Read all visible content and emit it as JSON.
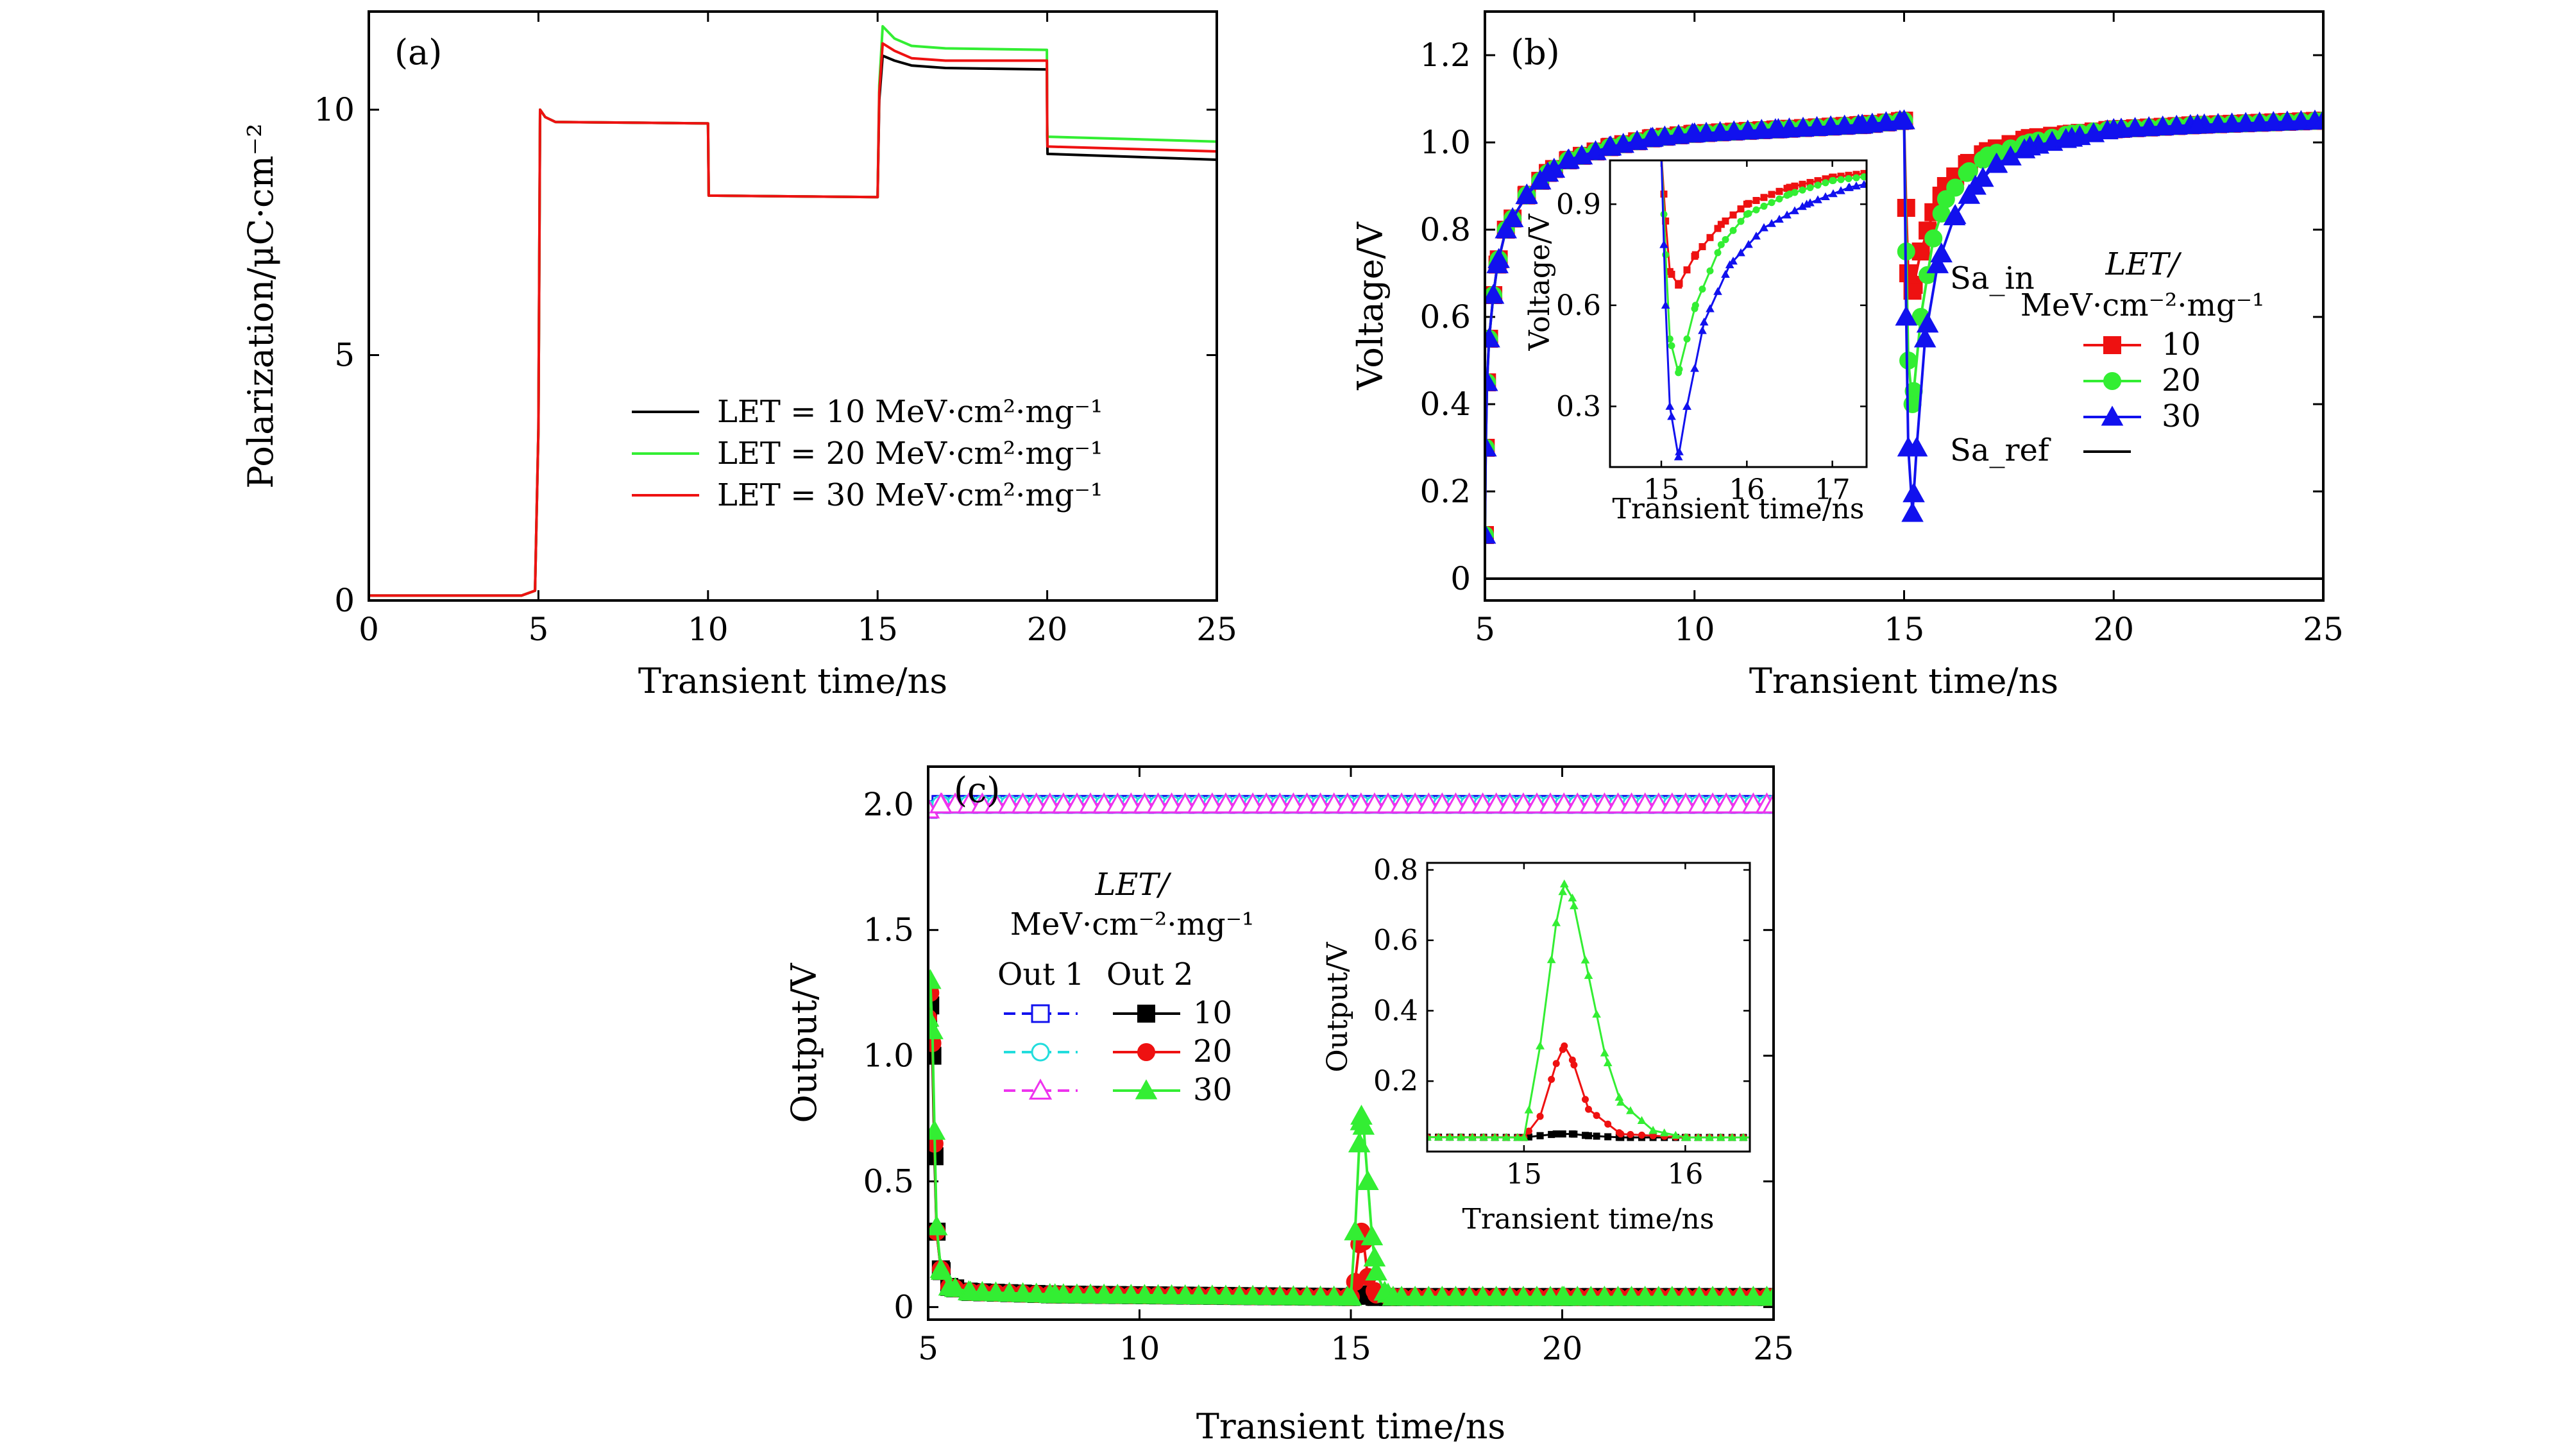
{
  "figure": {
    "colors": {
      "black": "#000000",
      "green": "#33ee33",
      "red": "#ee1111",
      "blue": "#1111ee",
      "cyan": "#22dddd",
      "magenta": "#ee33ee"
    }
  },
  "chart_data": [
    {
      "id": "a",
      "type": "line",
      "panel_label": "(a)",
      "xlabel": "Transient time/ns",
      "ylabel": "Polarization/μC·cm⁻²",
      "xlim": [
        0,
        25
      ],
      "ylim": [
        0,
        12
      ],
      "xticks": [
        "0",
        "5",
        "10",
        "15",
        "20",
        "25"
      ],
      "yticks": [
        "0",
        "5",
        "10"
      ],
      "legend_position": "lower-right",
      "series": [
        {
          "name": "LET = 10 MeV·cm²·mg⁻¹",
          "color": "#000000",
          "x": [
            0,
            4.5,
            4.9,
            5.0,
            5.05,
            5.2,
            5.5,
            10.0,
            10.02,
            15.0,
            15.05,
            15.15,
            15.5,
            16.0,
            17.0,
            19.99,
            20.0,
            20.01,
            25
          ],
          "y": [
            0.1,
            0.1,
            0.2,
            3.5,
            10.0,
            9.85,
            9.75,
            9.72,
            8.25,
            8.22,
            10.2,
            11.1,
            11.0,
            10.9,
            10.85,
            10.82,
            9.5,
            9.1,
            8.98
          ]
        },
        {
          "name": "LET = 20 MeV·cm²·mg⁻¹",
          "color": "#33ee33",
          "x": [
            0,
            4.5,
            4.9,
            5.0,
            5.05,
            5.2,
            5.5,
            10.0,
            10.02,
            15.0,
            15.05,
            15.15,
            15.5,
            16.0,
            17.0,
            19.99,
            20.0,
            20.01,
            25
          ],
          "y": [
            0.1,
            0.1,
            0.2,
            3.5,
            10.0,
            9.85,
            9.75,
            9.72,
            8.25,
            8.22,
            10.5,
            11.7,
            11.45,
            11.3,
            11.25,
            11.22,
            9.7,
            9.45,
            9.35
          ]
        },
        {
          "name": "LET = 30 MeV·cm²·mg⁻¹",
          "color": "#ee1111",
          "x": [
            0,
            4.5,
            4.9,
            5.0,
            5.05,
            5.2,
            5.5,
            10.0,
            10.02,
            15.0,
            15.05,
            15.15,
            15.5,
            16.0,
            17.0,
            19.99,
            20.0,
            20.01,
            25
          ],
          "y": [
            0.1,
            0.1,
            0.2,
            3.5,
            10.0,
            9.85,
            9.75,
            9.72,
            8.25,
            8.22,
            10.35,
            11.35,
            11.2,
            11.05,
            11.0,
            11.0,
            9.6,
            9.25,
            9.15
          ]
        }
      ]
    },
    {
      "id": "b",
      "type": "line",
      "panel_label": "(b)",
      "xlabel": "Transient time/ns",
      "ylabel": "Voltage/V",
      "xlim": [
        5,
        25
      ],
      "ylim": [
        -0.05,
        1.3
      ],
      "xticks": [
        "5",
        "10",
        "15",
        "20",
        "25"
      ],
      "yticks": [
        "0",
        "0.2",
        "0.4",
        "0.6",
        "0.8",
        "1.0",
        "1.2"
      ],
      "legend": {
        "title": "LET/",
        "subtitle": "MeV·cm⁻²·mg⁻¹",
        "group_in": "Sa_in",
        "group_ref": "Sa_ref",
        "position": "right"
      },
      "series": [
        {
          "name": "10",
          "color": "#ee1111",
          "marker": "square",
          "x": [
            5.0,
            5.02,
            5.05,
            5.1,
            5.2,
            5.3,
            5.5,
            6.0,
            6.5,
            7.0,
            8.0,
            9.0,
            10.0,
            12.0,
            14.0,
            15.0,
            15.05,
            15.1,
            15.2,
            15.4,
            15.7,
            16.0,
            16.5,
            17.0,
            18.0,
            19.0,
            20.0,
            22.0,
            25.0
          ],
          "y": [
            0.1,
            0.3,
            0.45,
            0.55,
            0.65,
            0.72,
            0.8,
            0.88,
            0.93,
            0.96,
            0.99,
            1.01,
            1.02,
            1.03,
            1.04,
            1.05,
            0.85,
            0.7,
            0.66,
            0.75,
            0.84,
            0.9,
            0.95,
            0.98,
            1.01,
            1.02,
            1.03,
            1.04,
            1.05
          ]
        },
        {
          "name": "20",
          "color": "#33ee33",
          "marker": "circle",
          "x": [
            5.0,
            5.02,
            5.05,
            5.1,
            5.2,
            5.3,
            5.5,
            6.0,
            6.5,
            7.0,
            8.0,
            9.0,
            10.0,
            12.0,
            14.0,
            15.0,
            15.05,
            15.1,
            15.2,
            15.4,
            15.7,
            16.0,
            16.5,
            17.0,
            18.0,
            19.0,
            20.0,
            22.0,
            25.0
          ],
          "y": [
            0.1,
            0.3,
            0.45,
            0.55,
            0.65,
            0.72,
            0.8,
            0.88,
            0.93,
            0.96,
            0.99,
            1.01,
            1.02,
            1.03,
            1.04,
            1.05,
            0.75,
            0.5,
            0.4,
            0.6,
            0.78,
            0.87,
            0.93,
            0.97,
            1.0,
            1.02,
            1.03,
            1.04,
            1.05
          ]
        },
        {
          "name": "30",
          "color": "#1111ee",
          "marker": "triangle",
          "x": [
            5.0,
            5.02,
            5.05,
            5.1,
            5.2,
            5.3,
            5.5,
            6.0,
            6.5,
            7.0,
            8.0,
            9.0,
            10.0,
            12.0,
            14.0,
            15.0,
            15.05,
            15.1,
            15.2,
            15.3,
            15.5,
            15.8,
            16.2,
            16.7,
            17.2,
            18.0,
            19.0,
            20.0,
            22.0,
            25.0
          ],
          "y": [
            0.1,
            0.3,
            0.45,
            0.55,
            0.65,
            0.72,
            0.8,
            0.88,
            0.93,
            0.96,
            0.99,
            1.01,
            1.02,
            1.03,
            1.04,
            1.05,
            0.6,
            0.3,
            0.15,
            0.3,
            0.55,
            0.72,
            0.83,
            0.9,
            0.95,
            0.99,
            1.01,
            1.03,
            1.04,
            1.05
          ]
        },
        {
          "name": "Sa_ref",
          "color": "#000000",
          "marker": "none",
          "x": [
            5,
            25
          ],
          "y": [
            0,
            0
          ]
        }
      ],
      "inset": {
        "xlabel": "Transient time/ns",
        "ylabel": "Voltage/V",
        "xlim": [
          14.4,
          17.4
        ],
        "ylim": [
          0.12,
          1.03
        ],
        "xticks": [
          "15",
          "16",
          "17"
        ],
        "yticks": [
          "0.3",
          "0.6",
          "0.9"
        ]
      }
    },
    {
      "id": "c",
      "type": "line",
      "panel_label": "(c)",
      "xlabel": "Transient time/ns",
      "ylabel": "Output/V",
      "xlim": [
        5,
        25
      ],
      "ylim": [
        -0.05,
        2.15
      ],
      "xticks": [
        "5",
        "10",
        "15",
        "20",
        "25"
      ],
      "yticks": [
        "0",
        "0.5",
        "1.0",
        "1.5",
        "2.0"
      ],
      "legend": {
        "title": "LET/",
        "subtitle": "MeV·cm⁻²·mg⁻¹",
        "col1": "Out 1",
        "col2": "Out 2",
        "rows": [
          "10",
          "20",
          "30"
        ],
        "position": "left"
      },
      "series": [
        {
          "name": "Out 1 10",
          "color": "#1111ee",
          "marker": "open-square",
          "x": [
            5.0,
            5.3,
            25.0
          ],
          "y": [
            1.98,
            2.0,
            2.0
          ]
        },
        {
          "name": "Out 1 20",
          "color": "#22dddd",
          "marker": "open-circle",
          "x": [
            5.0,
            5.3,
            25.0
          ],
          "y": [
            1.98,
            2.0,
            2.0
          ]
        },
        {
          "name": "Out 1 30",
          "color": "#ee33ee",
          "marker": "open-triangle",
          "x": [
            5.0,
            5.3,
            25.0
          ],
          "y": [
            1.98,
            2.0,
            2.0
          ]
        },
        {
          "name": "Out 2 10",
          "color": "#000000",
          "marker": "square",
          "x": [
            5.0,
            5.05,
            5.1,
            5.15,
            5.2,
            5.3,
            5.5,
            6.0,
            8.0,
            15.0,
            15.1,
            15.2,
            15.3,
            15.4,
            15.6,
            16.0,
            20.0,
            25.0
          ],
          "y": [
            1.15,
            1.2,
            1.0,
            0.6,
            0.3,
            0.15,
            0.08,
            0.06,
            0.05,
            0.04,
            0.045,
            0.05,
            0.05,
            0.045,
            0.04,
            0.04,
            0.04,
            0.04
          ]
        },
        {
          "name": "Out 2 20",
          "color": "#ee1111",
          "marker": "circle",
          "x": [
            5.0,
            5.05,
            5.1,
            5.15,
            5.2,
            5.3,
            5.5,
            6.0,
            8.0,
            15.0,
            15.1,
            15.2,
            15.25,
            15.3,
            15.4,
            15.6,
            16.0,
            20.0,
            25.0
          ],
          "y": [
            1.15,
            1.25,
            1.05,
            0.65,
            0.3,
            0.15,
            0.08,
            0.06,
            0.05,
            0.04,
            0.1,
            0.25,
            0.3,
            0.26,
            0.12,
            0.05,
            0.04,
            0.04,
            0.04
          ]
        },
        {
          "name": "Out 2 30",
          "color": "#33ee33",
          "marker": "triangle",
          "x": [
            5.0,
            5.05,
            5.1,
            5.15,
            5.2,
            5.3,
            5.5,
            6.0,
            8.0,
            15.0,
            15.1,
            15.2,
            15.25,
            15.3,
            15.4,
            15.5,
            15.6,
            15.8,
            16.0,
            20.0,
            25.0
          ],
          "y": [
            1.15,
            1.3,
            1.1,
            0.7,
            0.32,
            0.15,
            0.08,
            0.06,
            0.05,
            0.04,
            0.3,
            0.65,
            0.76,
            0.72,
            0.5,
            0.28,
            0.14,
            0.06,
            0.04,
            0.04,
            0.04
          ]
        }
      ],
      "inset": {
        "xlabel": "Transient time/ns",
        "ylabel": "Output/V",
        "xlim": [
          14.4,
          16.4
        ],
        "ylim": [
          0.0,
          0.82
        ],
        "xticks": [
          "15",
          "16"
        ],
        "yticks": [
          "0.2",
          "0.4",
          "0.6",
          "0.8"
        ]
      }
    }
  ]
}
